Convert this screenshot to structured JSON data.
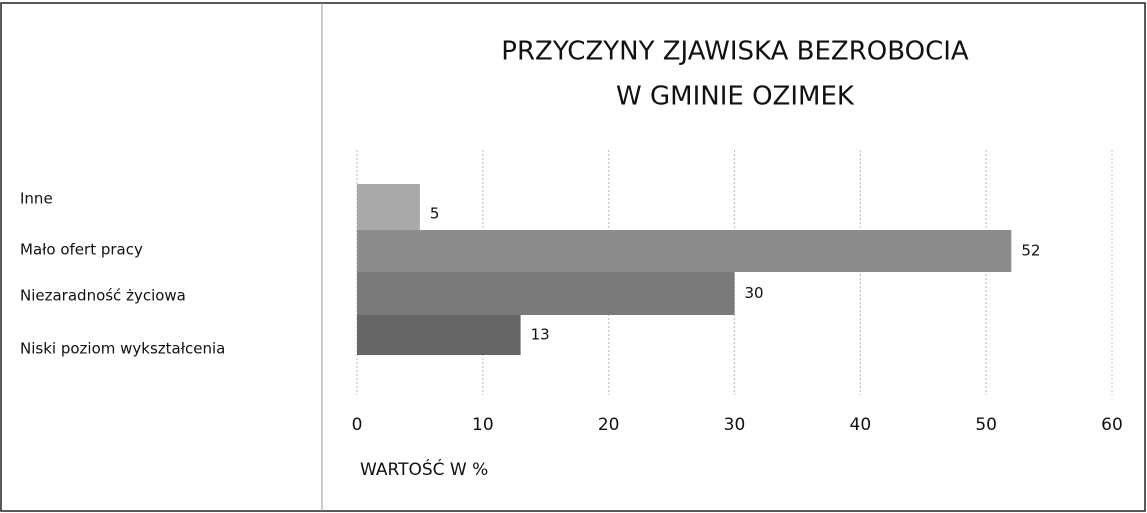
{
  "chart_data": {
    "type": "bar",
    "orientation": "horizontal",
    "title": [
      "PRZYCZYNY ZJAWISKA BEZROBOCIA",
      "W GMINIE OZIMEK"
    ],
    "x_label": "WARTOŚĆ W %",
    "categories": [
      "Inne",
      "Mało ofert pracy",
      "Niezaradność życiowa",
      "Niski poziom wykształcenia"
    ],
    "values": [
      5,
      52,
      30,
      13
    ],
    "colors": [
      "#a9a9a9",
      "#8c8c8c",
      "#7a7a7a",
      "#666666"
    ],
    "xlim": [
      0,
      60
    ],
    "xticks": [
      0,
      10,
      20,
      30,
      40,
      50,
      60
    ],
    "grid": true
  }
}
